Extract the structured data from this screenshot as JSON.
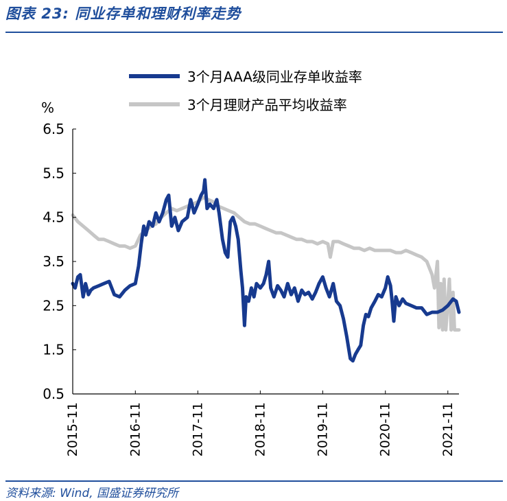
{
  "figure": {
    "title": "图表 23:  同业存单和理财利率走势",
    "source": "资料来源: Wind, 国盛证券研究所"
  },
  "chart_data": {
    "type": "line",
    "ylabel": "%",
    "ylim": [
      0.5,
      6.5
    ],
    "yticks": [
      "6.5",
      "5.5",
      "4.5",
      "3.5",
      "2.5",
      "1.5",
      "0.5"
    ],
    "x_ticks": [
      "2015-11",
      "2016-11",
      "2017-11",
      "2018-11",
      "2019-11",
      "2020-11",
      "2021-11"
    ],
    "grid": false,
    "legend_position": "top",
    "series": [
      {
        "name": "3个月AAA级同业存单收益率",
        "color": "#173a8f",
        "points": [
          [
            "2015-11-01",
            3.0
          ],
          [
            "2015-11-15",
            2.9
          ],
          [
            "2015-12-01",
            3.15
          ],
          [
            "2015-12-15",
            3.2
          ],
          [
            "2016-01-01",
            2.7
          ],
          [
            "2016-01-15",
            3.0
          ],
          [
            "2016-02-01",
            2.75
          ],
          [
            "2016-02-15",
            2.85
          ],
          [
            "2016-03-01",
            2.9
          ],
          [
            "2016-04-01",
            2.95
          ],
          [
            "2016-05-01",
            3.0
          ],
          [
            "2016-06-01",
            3.05
          ],
          [
            "2016-07-01",
            2.75
          ],
          [
            "2016-08-01",
            2.7
          ],
          [
            "2016-09-01",
            2.85
          ],
          [
            "2016-10-01",
            2.95
          ],
          [
            "2016-11-01",
            3.0
          ],
          [
            "2016-11-20",
            3.4
          ],
          [
            "2016-12-05",
            3.9
          ],
          [
            "2016-12-20",
            4.3
          ],
          [
            "2017-01-01",
            4.1
          ],
          [
            "2017-01-20",
            4.4
          ],
          [
            "2017-02-10",
            4.3
          ],
          [
            "2017-03-01",
            4.6
          ],
          [
            "2017-03-20",
            4.4
          ],
          [
            "2017-04-10",
            4.6
          ],
          [
            "2017-05-01",
            4.9
          ],
          [
            "2017-05-15",
            5.0
          ],
          [
            "2017-06-01",
            4.3
          ],
          [
            "2017-06-20",
            4.5
          ],
          [
            "2017-07-10",
            4.2
          ],
          [
            "2017-08-01",
            4.4
          ],
          [
            "2017-09-01",
            4.5
          ],
          [
            "2017-09-20",
            4.9
          ],
          [
            "2017-10-10",
            4.6
          ],
          [
            "2017-11-01",
            4.8
          ],
          [
            "2017-11-20",
            5.0
          ],
          [
            "2017-12-05",
            5.1
          ],
          [
            "2017-12-12",
            5.35
          ],
          [
            "2017-12-25",
            4.7
          ],
          [
            "2018-01-10",
            4.8
          ],
          [
            "2018-02-01",
            4.7
          ],
          [
            "2018-02-20",
            4.9
          ],
          [
            "2018-03-05",
            4.6
          ],
          [
            "2018-03-25",
            4.0
          ],
          [
            "2018-04-10",
            3.7
          ],
          [
            "2018-04-25",
            3.6
          ],
          [
            "2018-05-10",
            4.4
          ],
          [
            "2018-05-25",
            4.5
          ],
          [
            "2018-06-10",
            4.3
          ],
          [
            "2018-06-25",
            4.0
          ],
          [
            "2018-07-10",
            3.3
          ],
          [
            "2018-07-20",
            2.9
          ],
          [
            "2018-08-01",
            2.05
          ],
          [
            "2018-08-10",
            2.7
          ],
          [
            "2018-08-25",
            2.6
          ],
          [
            "2018-09-10",
            2.9
          ],
          [
            "2018-09-25",
            2.7
          ],
          [
            "2018-10-10",
            3.0
          ],
          [
            "2018-11-01",
            2.9
          ],
          [
            "2018-11-20",
            3.0
          ],
          [
            "2018-12-05",
            3.2
          ],
          [
            "2018-12-20",
            3.5
          ],
          [
            "2019-01-01",
            2.9
          ],
          [
            "2019-01-20",
            2.7
          ],
          [
            "2019-02-10",
            2.95
          ],
          [
            "2019-03-01",
            2.85
          ],
          [
            "2019-03-20",
            2.7
          ],
          [
            "2019-04-10",
            3.0
          ],
          [
            "2019-05-01",
            2.75
          ],
          [
            "2019-05-20",
            2.9
          ],
          [
            "2019-06-10",
            2.6
          ],
          [
            "2019-07-01",
            2.85
          ],
          [
            "2019-07-20",
            2.75
          ],
          [
            "2019-08-10",
            2.8
          ],
          [
            "2019-09-01",
            2.65
          ],
          [
            "2019-09-20",
            2.8
          ],
          [
            "2019-10-10",
            3.0
          ],
          [
            "2019-11-01",
            3.15
          ],
          [
            "2019-11-20",
            2.9
          ],
          [
            "2019-12-10",
            2.7
          ],
          [
            "2020-01-01",
            3.0
          ],
          [
            "2020-01-20",
            2.6
          ],
          [
            "2020-02-10",
            2.5
          ],
          [
            "2020-03-01",
            2.2
          ],
          [
            "2020-03-20",
            1.8
          ],
          [
            "2020-04-10",
            1.3
          ],
          [
            "2020-04-25",
            1.25
          ],
          [
            "2020-05-10",
            1.4
          ],
          [
            "2020-05-25",
            1.5
          ],
          [
            "2020-06-10",
            1.6
          ],
          [
            "2020-06-25",
            2.05
          ],
          [
            "2020-07-10",
            2.3
          ],
          [
            "2020-07-25",
            2.25
          ],
          [
            "2020-08-10",
            2.45
          ],
          [
            "2020-09-01",
            2.6
          ],
          [
            "2020-09-20",
            2.75
          ],
          [
            "2020-10-10",
            2.7
          ],
          [
            "2020-11-01",
            2.9
          ],
          [
            "2020-11-15",
            3.15
          ],
          [
            "2020-12-01",
            2.95
          ],
          [
            "2020-12-10",
            2.6
          ],
          [
            "2020-12-20",
            2.15
          ],
          [
            "2021-01-01",
            2.7
          ],
          [
            "2021-01-20",
            2.5
          ],
          [
            "2021-02-10",
            2.65
          ],
          [
            "2021-03-01",
            2.55
          ],
          [
            "2021-04-01",
            2.5
          ],
          [
            "2021-05-01",
            2.45
          ],
          [
            "2021-06-01",
            2.45
          ],
          [
            "2021-07-01",
            2.3
          ],
          [
            "2021-08-01",
            2.35
          ],
          [
            "2021-09-01",
            2.35
          ],
          [
            "2021-10-01",
            2.4
          ],
          [
            "2021-11-01",
            2.5
          ],
          [
            "2021-12-01",
            2.65
          ],
          [
            "2021-12-20",
            2.6
          ],
          [
            "2022-01-05",
            2.35
          ]
        ]
      },
      {
        "name": "3个月理财产品平均收益率",
        "color": "#c6c6c6",
        "points": [
          [
            "2015-11-01",
            4.55
          ],
          [
            "2015-12-01",
            4.4
          ],
          [
            "2016-01-01",
            4.3
          ],
          [
            "2016-02-01",
            4.2
          ],
          [
            "2016-03-01",
            4.1
          ],
          [
            "2016-04-01",
            4.0
          ],
          [
            "2016-05-01",
            4.0
          ],
          [
            "2016-06-01",
            3.95
          ],
          [
            "2016-07-01",
            3.9
          ],
          [
            "2016-08-01",
            3.85
          ],
          [
            "2016-09-01",
            3.85
          ],
          [
            "2016-10-01",
            3.8
          ],
          [
            "2016-11-01",
            3.85
          ],
          [
            "2016-12-01",
            4.1
          ],
          [
            "2017-01-01",
            4.2
          ],
          [
            "2017-02-01",
            4.3
          ],
          [
            "2017-03-01",
            4.35
          ],
          [
            "2017-04-01",
            4.5
          ],
          [
            "2017-05-01",
            4.6
          ],
          [
            "2017-06-01",
            4.7
          ],
          [
            "2017-07-01",
            4.65
          ],
          [
            "2017-08-01",
            4.7
          ],
          [
            "2017-09-01",
            4.75
          ],
          [
            "2017-10-01",
            4.8
          ],
          [
            "2017-11-01",
            4.85
          ],
          [
            "2017-12-01",
            4.95
          ],
          [
            "2018-01-01",
            4.9
          ],
          [
            "2018-02-01",
            4.85
          ],
          [
            "2018-03-01",
            4.75
          ],
          [
            "2018-04-01",
            4.7
          ],
          [
            "2018-05-01",
            4.65
          ],
          [
            "2018-06-01",
            4.6
          ],
          [
            "2018-07-01",
            4.5
          ],
          [
            "2018-08-01",
            4.4
          ],
          [
            "2018-09-01",
            4.35
          ],
          [
            "2018-10-01",
            4.35
          ],
          [
            "2018-11-01",
            4.3
          ],
          [
            "2018-12-01",
            4.25
          ],
          [
            "2019-01-01",
            4.2
          ],
          [
            "2019-02-01",
            4.15
          ],
          [
            "2019-03-01",
            4.15
          ],
          [
            "2019-04-01",
            4.1
          ],
          [
            "2019-05-01",
            4.05
          ],
          [
            "2019-06-01",
            4.0
          ],
          [
            "2019-07-01",
            4.0
          ],
          [
            "2019-08-01",
            3.95
          ],
          [
            "2019-09-01",
            3.95
          ],
          [
            "2019-10-01",
            3.9
          ],
          [
            "2019-11-01",
            3.95
          ],
          [
            "2019-12-01",
            3.9
          ],
          [
            "2019-12-15",
            3.6
          ],
          [
            "2020-01-01",
            3.95
          ],
          [
            "2020-02-01",
            3.95
          ],
          [
            "2020-03-01",
            3.9
          ],
          [
            "2020-04-01",
            3.85
          ],
          [
            "2020-05-01",
            3.8
          ],
          [
            "2020-06-01",
            3.8
          ],
          [
            "2020-07-01",
            3.75
          ],
          [
            "2020-08-01",
            3.8
          ],
          [
            "2020-09-01",
            3.75
          ],
          [
            "2020-10-01",
            3.75
          ],
          [
            "2020-11-01",
            3.75
          ],
          [
            "2020-12-01",
            3.75
          ],
          [
            "2021-01-01",
            3.7
          ],
          [
            "2021-02-01",
            3.7
          ],
          [
            "2021-03-01",
            3.75
          ],
          [
            "2021-04-01",
            3.7
          ],
          [
            "2021-05-01",
            3.65
          ],
          [
            "2021-06-01",
            3.6
          ],
          [
            "2021-07-01",
            3.5
          ],
          [
            "2021-08-01",
            3.2
          ],
          [
            "2021-08-15",
            2.9
          ],
          [
            "2021-09-01",
            3.5
          ],
          [
            "2021-09-10",
            2.0
          ],
          [
            "2021-09-20",
            3.0
          ],
          [
            "2021-10-01",
            1.95
          ],
          [
            "2021-10-10",
            3.1
          ],
          [
            "2021-10-20",
            1.95
          ],
          [
            "2021-11-01",
            2.6
          ],
          [
            "2021-11-10",
            3.1
          ],
          [
            "2021-11-20",
            1.95
          ],
          [
            "2021-12-01",
            2.8
          ],
          [
            "2021-12-10",
            1.95
          ],
          [
            "2022-01-05",
            1.95
          ]
        ]
      }
    ]
  }
}
